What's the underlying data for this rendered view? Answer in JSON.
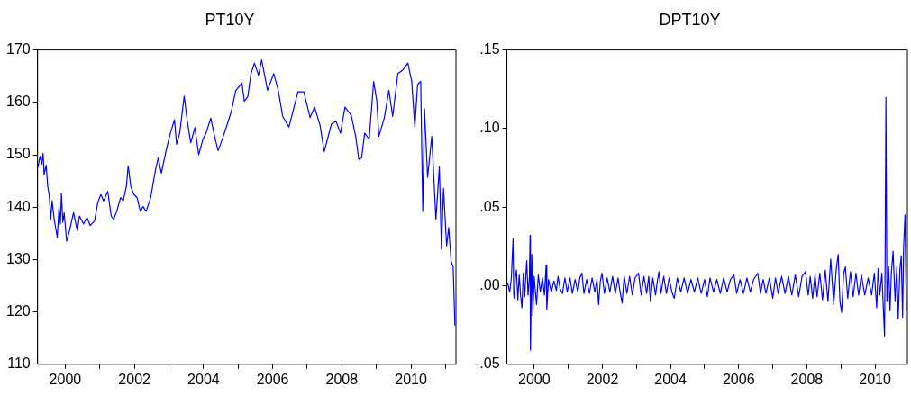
{
  "chart_data": [
    {
      "type": "line",
      "title": "PT10Y",
      "xlim": [
        1999.2,
        2011.3
      ],
      "ylim": [
        110,
        170
      ],
      "yticks": [
        110,
        120,
        130,
        140,
        150,
        160,
        170
      ],
      "xticks": [
        2000,
        {
          "value": 2001,
          "label": null
        },
        2002,
        {
          "value": 2003,
          "label": null
        },
        2004,
        {
          "value": 2005,
          "label": null
        },
        2006,
        {
          "value": 2007,
          "label": null
        },
        2008,
        {
          "value": 2009,
          "label": null
        },
        2010,
        {
          "value": 2011,
          "label": null
        }
      ],
      "grid": false,
      "x": [
        1999.21,
        1999.27,
        1999.32,
        1999.36,
        1999.39,
        1999.45,
        1999.49,
        1999.54,
        1999.58,
        1999.62,
        1999.68,
        1999.77,
        1999.82,
        1999.86,
        1999.89,
        1999.93,
        1999.97,
        2000.04,
        2000.12,
        2000.24,
        2000.35,
        2000.41,
        2000.53,
        2000.63,
        2000.72,
        2000.85,
        2000.94,
        2001.03,
        2001.11,
        2001.23,
        2001.33,
        2001.4,
        2001.49,
        2001.6,
        2001.68,
        2001.77,
        2001.82,
        2001.9,
        2001.99,
        2002.08,
        2002.17,
        2002.25,
        2002.34,
        2002.47,
        2002.61,
        2002.69,
        2002.78,
        2002.91,
        2003.04,
        2003.16,
        2003.22,
        2003.31,
        2003.44,
        2003.53,
        2003.63,
        2003.75,
        2003.86,
        2003.98,
        2004.07,
        2004.21,
        2004.32,
        2004.42,
        2004.54,
        2004.67,
        2004.8,
        2004.93,
        2005.11,
        2005.18,
        2005.28,
        2005.37,
        2005.47,
        2005.59,
        2005.68,
        2005.85,
        2006.03,
        2006.16,
        2006.29,
        2006.47,
        2006.73,
        2006.9,
        2007.08,
        2007.21,
        2007.37,
        2007.49,
        2007.7,
        2007.83,
        2007.96,
        2008.09,
        2008.27,
        2008.4,
        2008.49,
        2008.57,
        2008.66,
        2008.79,
        2008.92,
        2009.01,
        2009.07,
        2009.23,
        2009.36,
        2009.47,
        2009.62,
        2009.75,
        2009.91,
        2010.02,
        2010.11,
        2010.19,
        2010.28,
        2010.34,
        2010.39,
        2010.48,
        2010.6,
        2010.72,
        2010.82,
        2010.88,
        2010.94,
        2011.03,
        2011.09,
        2011.16,
        2011.22,
        2011.27
      ],
      "series": [
        {
          "color": "#0000ff",
          "values": [
            147.6,
            149.7,
            148.2,
            150.3,
            146.2,
            148,
            144.1,
            142.1,
            137.7,
            141.2,
            137.7,
            134.2,
            140,
            136.8,
            142.6,
            137.1,
            138.9,
            133.5,
            135.4,
            139,
            135.4,
            138.3,
            136.8,
            138,
            136.5,
            137.4,
            140.9,
            142.4,
            141.2,
            143,
            138.3,
            137.7,
            139.2,
            141.8,
            141.2,
            144.1,
            147.9,
            143.8,
            142.4,
            141.8,
            139.2,
            140.1,
            139.2,
            141.8,
            147.1,
            149.4,
            146.5,
            150.6,
            154.1,
            156.7,
            152,
            154.1,
            161.2,
            156.4,
            152.3,
            155.2,
            150,
            152.9,
            154.1,
            157,
            153.5,
            150.8,
            152.9,
            155.5,
            158.2,
            162.2,
            163.7,
            160.2,
            161.1,
            165.4,
            167.5,
            165.2,
            168.1,
            162.3,
            165.5,
            162.3,
            157.3,
            155.3,
            162,
            162,
            157.1,
            159.1,
            155.6,
            150.6,
            155.9,
            156.4,
            154.1,
            159.1,
            157.6,
            153.5,
            149.1,
            149.4,
            154.1,
            153,
            164,
            160.3,
            153.5,
            157.1,
            162.3,
            157.3,
            165.5,
            166.1,
            167.5,
            164,
            155.3,
            163.4,
            164,
            139.2,
            158.8,
            145.7,
            153.5,
            137.7,
            147.7,
            132,
            143.6,
            132.6,
            136.1,
            129.7,
            128.5,
            117.4
          ]
        }
      ]
    },
    {
      "type": "line",
      "title": "DPT10Y",
      "xlim": [
        1999.2,
        2010.95
      ],
      "ylim": [
        -0.05,
        0.15
      ],
      "yticks": [
        {
          "value": -0.05,
          "label": "-.05"
        },
        {
          "value": 0,
          "label": ".00"
        },
        {
          "value": 0.05,
          "label": ".05"
        },
        {
          "value": 0.1,
          "label": ".10"
        },
        {
          "value": 0.15,
          "label": ".15"
        }
      ],
      "xticks": [
        2000,
        {
          "value": 2001,
          "label": null
        },
        2002,
        {
          "value": 2003,
          "label": null
        },
        2004,
        {
          "value": 2005,
          "label": null
        },
        2006,
        {
          "value": 2007,
          "label": null
        },
        2008,
        {
          "value": 2009,
          "label": null
        },
        2010
      ],
      "grid": false,
      "x": [
        1999.22,
        1999.28,
        1999.33,
        1999.38,
        1999.4,
        1999.42,
        1999.45,
        1999.48,
        1999.52,
        1999.56,
        1999.6,
        1999.64,
        1999.68,
        1999.72,
        1999.75,
        1999.78,
        1999.82,
        1999.86,
        1999.88,
        1999.89,
        1999.93,
        1999.96,
        2000,
        2000.04,
        2000.07,
        2000.12,
        2000.18,
        2000.24,
        2000.3,
        2000.35,
        2000.37,
        2000.42,
        2000.5,
        2000.58,
        2000.65,
        2000.7,
        2000.76,
        2000.83,
        2000.9,
        2000.97,
        2001.05,
        2001.12,
        2001.2,
        2001.28,
        2001.34,
        2001.4,
        2001.46,
        2001.54,
        2001.62,
        2001.7,
        2001.78,
        2001.84,
        2001.89,
        2001.94,
        2001.99,
        2002.06,
        2002.14,
        2002.22,
        2002.3,
        2002.38,
        2002.46,
        2002.52,
        2002.58,
        2002.64,
        2002.72,
        2002.8,
        2002.88,
        2002.96,
        2003.06,
        2003.14,
        2003.22,
        2003.3,
        2003.36,
        2003.41,
        2003.48,
        2003.56,
        2003.62,
        2003.66,
        2003.72,
        2003.8,
        2003.88,
        2003.96,
        2004.04,
        2004.11,
        2004.2,
        2004.3,
        2004.4,
        2004.5,
        2004.6,
        2004.7,
        2004.8,
        2004.9,
        2005,
        2005.08,
        2005.16,
        2005.26,
        2005.36,
        2005.46,
        2005.56,
        2005.66,
        2005.76,
        2005.86,
        2005.94,
        2006.04,
        2006.14,
        2006.24,
        2006.34,
        2006.44,
        2006.56,
        2006.64,
        2006.72,
        2006.8,
        2006.9,
        2007,
        2007.08,
        2007.16,
        2007.26,
        2007.36,
        2007.46,
        2007.56,
        2007.66,
        2007.76,
        2007.86,
        2007.96,
        2008.04,
        2008.1,
        2008.17,
        2008.24,
        2008.3,
        2008.38,
        2008.46,
        2008.54,
        2008.62,
        2008.7,
        2008.79,
        2008.86,
        2008.92,
        2008.97,
        2009.02,
        2009.08,
        2009.13,
        2009.2,
        2009.28,
        2009.36,
        2009.44,
        2009.52,
        2009.6,
        2009.7,
        2009.8,
        2009.9,
        2009.98,
        2010.05,
        2010.09,
        2010.14,
        2010.2,
        2010.24,
        2010.28,
        2010.3,
        2010.32,
        2010.35,
        2010.4,
        2010.44,
        2010.48,
        2010.53,
        2010.59,
        2010.64,
        2010.68,
        2010.73,
        2010.77,
        2010.81,
        2010.84,
        2010.88,
        2010.92
      ],
      "series": [
        {
          "color": "#0000ff",
          "values": [
            0.002,
            -0.004,
            0.005,
            0.03,
            -0.006,
            -0.008,
            0.006,
            0.01,
            -0.009,
            0.007,
            -0.006,
            -0.014,
            0.008,
            -0.007,
            0.005,
            0.016,
            -0.006,
            0.006,
            0.032,
            -0.041,
            0.02,
            -0.019,
            0.006,
            -0.005,
            -0.012,
            0.007,
            -0.004,
            0.005,
            -0.006,
            0.013,
            -0.015,
            0.004,
            -0.004,
            0.003,
            -0.003,
            0.006,
            -0.002,
            -0.005,
            0.005,
            -0.004,
            0.005,
            -0.005,
            0.004,
            -0.004,
            0.005,
            0.008,
            -0.005,
            0.004,
            -0.005,
            0.005,
            -0.004,
            0.004,
            -0.012,
            0.003,
            0.008,
            -0.005,
            0.005,
            -0.004,
            0.006,
            -0.005,
            0.005,
            -0.004,
            -0.011,
            0.006,
            -0.005,
            0.006,
            -0.006,
            0.005,
            0.008,
            -0.006,
            0.006,
            -0.005,
            0.006,
            -0.01,
            0.005,
            -0.006,
            0.004,
            0.009,
            -0.005,
            0.006,
            -0.005,
            0.005,
            -0.004,
            -0.008,
            0.005,
            -0.004,
            0.005,
            -0.005,
            0.004,
            -0.004,
            0.005,
            -0.005,
            0.004,
            -0.007,
            0.005,
            -0.004,
            0.004,
            -0.005,
            0.005,
            -0.004,
            0.004,
            0.007,
            -0.005,
            0.004,
            -0.005,
            0.005,
            -0.004,
            0.004,
            0.008,
            -0.005,
            0.004,
            -0.005,
            0.005,
            -0.008,
            0.005,
            -0.005,
            0.006,
            -0.005,
            0.006,
            -0.006,
            0.007,
            -0.007,
            0.006,
            0.009,
            -0.006,
            0.006,
            -0.008,
            0.007,
            -0.007,
            0.008,
            -0.009,
            0.01,
            -0.01,
            0.017,
            -0.012,
            0.01,
            0.02,
            -0.01,
            -0.017,
            0.008,
            0.012,
            -0.008,
            0.009,
            -0.007,
            0.008,
            -0.006,
            0.007,
            -0.006,
            0.005,
            -0.006,
            0.008,
            -0.014,
            0.011,
            -0.006,
            0.008,
            -0.012,
            -0.032,
            0.027,
            0.12,
            -0.01,
            0.012,
            -0.016,
            0.008,
            0.022,
            -0.01,
            0.012,
            -0.021,
            0.01,
            0.019,
            -0.02,
            0.025,
            0.045,
            -0.016
          ]
        }
      ]
    }
  ]
}
